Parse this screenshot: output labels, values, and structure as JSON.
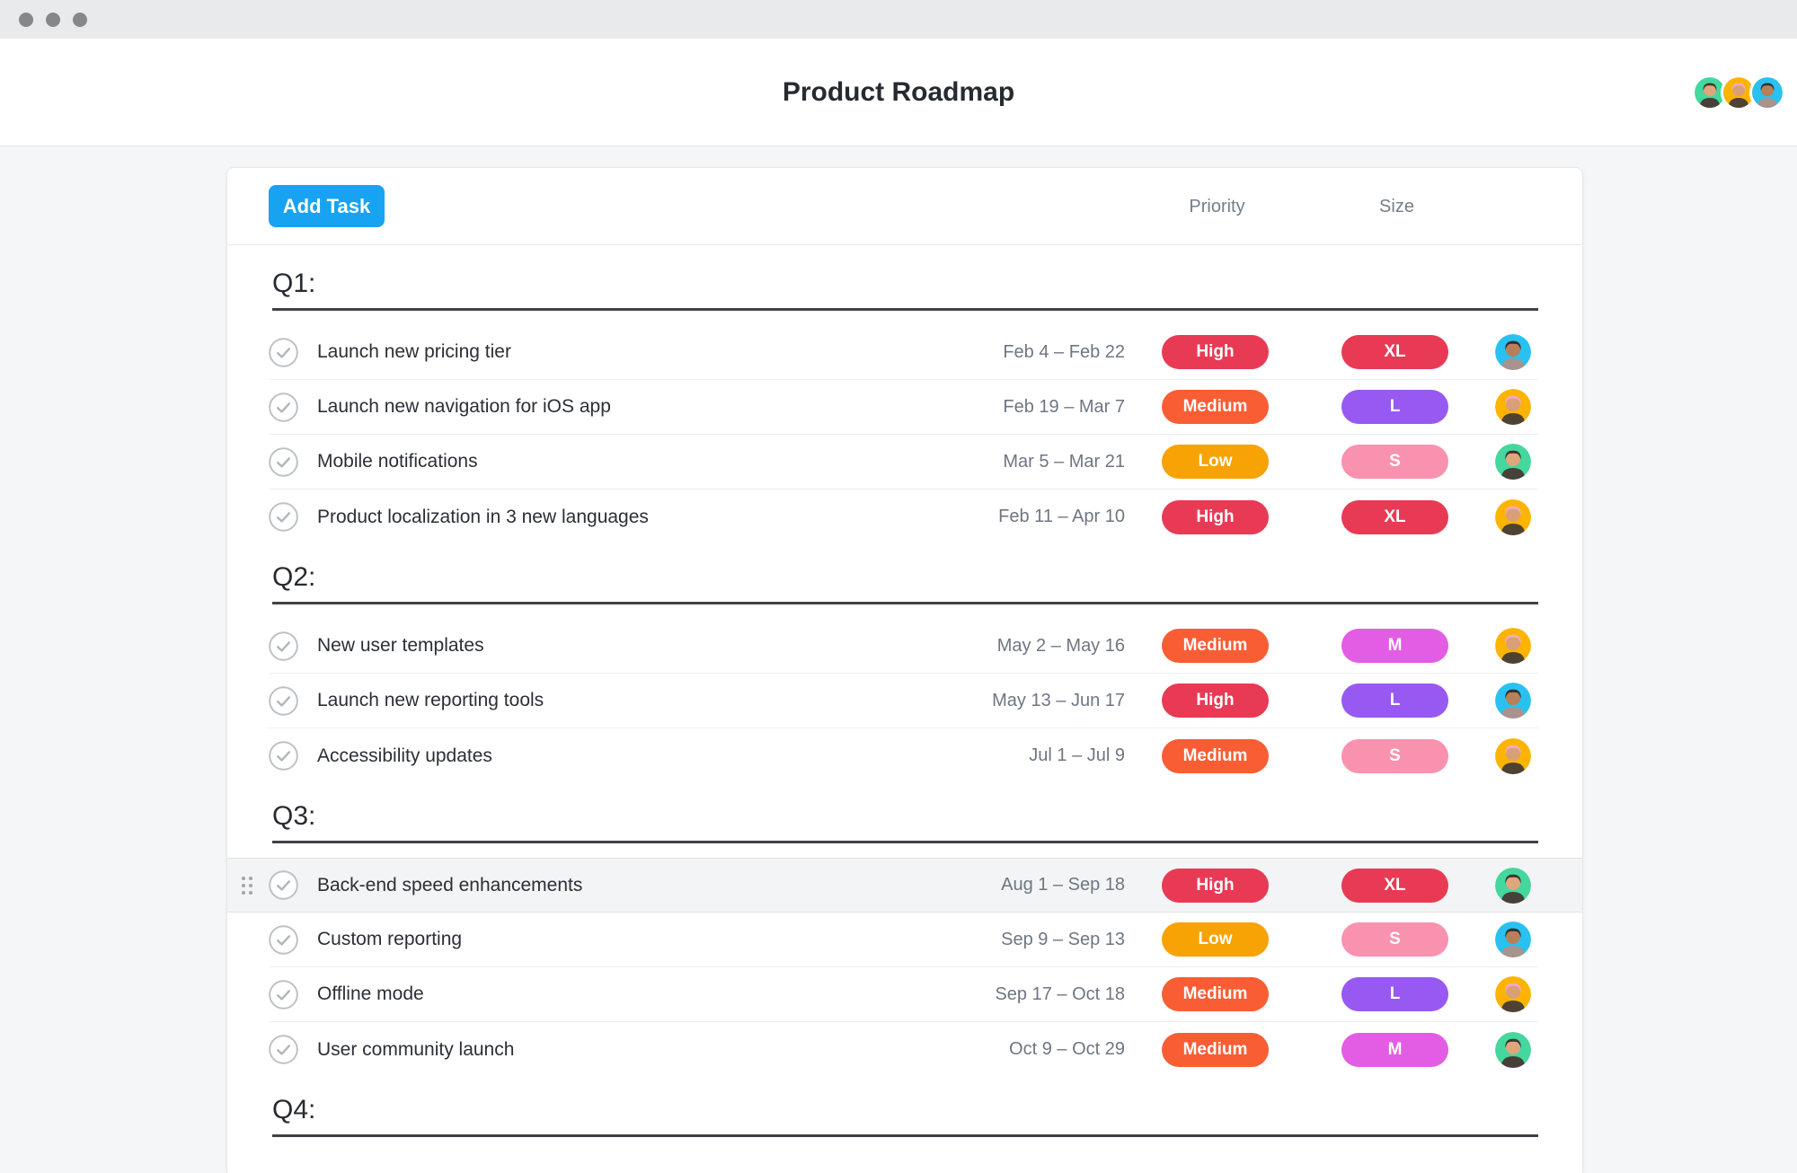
{
  "header": {
    "title": "Product Roadmap"
  },
  "toolbar": {
    "add_task_label": "Add Task"
  },
  "columns": {
    "priority": "Priority",
    "size": "Size"
  },
  "team_avatars": [
    "green",
    "yellow",
    "blue"
  ],
  "sections": [
    {
      "label": "Q1:",
      "tasks": [
        {
          "name": "Launch new pricing tier",
          "dates": "Feb 4 – Feb 22",
          "priority": "High",
          "size": "XL",
          "assignee": "blue"
        },
        {
          "name": "Launch new navigation for iOS app",
          "dates": "Feb 19 – Mar 7",
          "priority": "Medium",
          "size": "L",
          "assignee": "yellow"
        },
        {
          "name": "Mobile notifications",
          "dates": "Mar 5 – Mar 21",
          "priority": "Low",
          "size": "S",
          "assignee": "green"
        },
        {
          "name": "Product localization in 3 new languages",
          "dates": "Feb 11 – Apr 10",
          "priority": "High",
          "size": "XL",
          "assignee": "yellow"
        }
      ]
    },
    {
      "label": "Q2:",
      "tasks": [
        {
          "name": "New user templates",
          "dates": "May 2 – May 16",
          "priority": "Medium",
          "size": "M",
          "assignee": "yellow"
        },
        {
          "name": "Launch new reporting tools",
          "dates": "May 13 – Jun 17",
          "priority": "High",
          "size": "L",
          "assignee": "blue"
        },
        {
          "name": "Accessibility updates",
          "dates": "Jul 1 – Jul 9",
          "priority": "Medium",
          "size": "S",
          "assignee": "yellow"
        }
      ]
    },
    {
      "label": "Q3:",
      "tasks": [
        {
          "name": "Back-end speed enhancements",
          "dates": "Aug 1 – Sep 18",
          "priority": "High",
          "size": "XL",
          "assignee": "green",
          "highlighted": true
        },
        {
          "name": "Custom reporting",
          "dates": "Sep 9 – Sep 13",
          "priority": "Low",
          "size": "S",
          "assignee": "blue"
        },
        {
          "name": "Offline mode",
          "dates": "Sep 17 – Oct 18",
          "priority": "Medium",
          "size": "L",
          "assignee": "yellow"
        },
        {
          "name": "User community launch",
          "dates": "Oct 9 – Oct 29",
          "priority": "Medium",
          "size": "M",
          "assignee": "green"
        }
      ]
    },
    {
      "label": "Q4:",
      "tasks": []
    }
  ],
  "colors": {
    "accent_blue": "#18a3f2",
    "priority_high": "#e83a55",
    "priority_medium": "#f95d33",
    "priority_low": "#f7a205",
    "size_xl": "#e83a55",
    "size_l": "#9759f2",
    "size_s": "#f992af",
    "size_m": "#e35de4",
    "avatar_blue": "#29c1f0",
    "avatar_yellow": "#fcb400",
    "avatar_green": "#44d79e"
  }
}
